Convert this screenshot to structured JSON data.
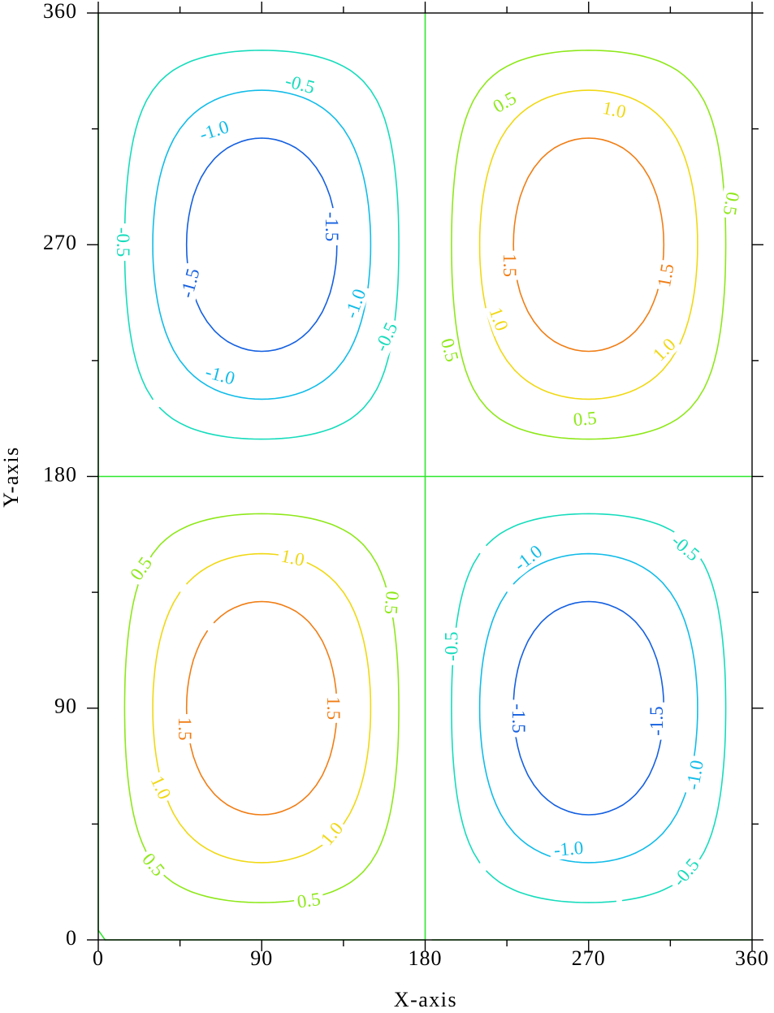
{
  "chart_data": {
    "type": "contour",
    "function": "z = 2*sin(x)*sin(y), x and y in degrees",
    "xlabel": "X-axis",
    "ylabel": "Y-axis",
    "xlim": [
      0,
      360
    ],
    "ylim": [
      0,
      360
    ],
    "x_ticks": [
      0,
      90,
      180,
      270,
      360
    ],
    "y_ticks": [
      0,
      90,
      180,
      270,
      360
    ],
    "x_tick_labels": [
      "0",
      "90",
      "180",
      "270",
      "360"
    ],
    "y_tick_labels": [
      "0",
      "90",
      "180",
      "270",
      "360"
    ],
    "x_minor_ticks": [
      45,
      135,
      225,
      315
    ],
    "y_minor_ticks": [
      45,
      135,
      225,
      315
    ],
    "grid": false,
    "levels": [
      {
        "value": -1.5,
        "label": "-1.5",
        "color": "#1560e0"
      },
      {
        "value": -1.0,
        "label": "-1.0",
        "color": "#12bce8"
      },
      {
        "value": -0.5,
        "label": "-0.5",
        "color": "#16dcbc"
      },
      {
        "value": 0.0,
        "label": "",
        "color": "#2ee82e"
      },
      {
        "value": 0.5,
        "label": "0.5",
        "color": "#8ee81a"
      },
      {
        "value": 1.0,
        "label": "1.0",
        "color": "#f0d814"
      },
      {
        "value": 1.5,
        "label": "1.5",
        "color": "#f07e16"
      }
    ],
    "lobes": [
      {
        "center": [
          90,
          270
        ],
        "sign": -1
      },
      {
        "center": [
          270,
          270
        ],
        "sign": 1
      },
      {
        "center": [
          90,
          90
        ],
        "sign": 1
      },
      {
        "center": [
          270,
          90
        ],
        "sign": -1
      }
    ],
    "contour_labels": [
      {
        "text": "-0.5",
        "x": 111,
        "y": 332,
        "angle": 15
      },
      {
        "text": "-1.0",
        "x": 64,
        "y": 314,
        "angle": -18
      },
      {
        "text": "-0.5",
        "x": 13,
        "y": 271,
        "angle": 90
      },
      {
        "text": "-1.5",
        "x": 128,
        "y": 277,
        "angle": 90
      },
      {
        "text": "-1.5",
        "x": 51,
        "y": 255,
        "angle": -75
      },
      {
        "text": "-1.0",
        "x": 142,
        "y": 247,
        "angle": -70
      },
      {
        "text": "-0.5",
        "x": 159,
        "y": 234,
        "angle": -65
      },
      {
        "text": "-1.0",
        "x": 67,
        "y": 219,
        "angle": 15
      },
      {
        "text": "0.5",
        "x": 224,
        "y": 325,
        "angle": -30
      },
      {
        "text": "1.0",
        "x": 284,
        "y": 322,
        "angle": 12
      },
      {
        "text": "0.5",
        "x": 348,
        "y": 286,
        "angle": 100
      },
      {
        "text": "1.5",
        "x": 226,
        "y": 262,
        "angle": 90
      },
      {
        "text": "1.5",
        "x": 313,
        "y": 258,
        "angle": -80
      },
      {
        "text": "1.0",
        "x": 220,
        "y": 241,
        "angle": 70
      },
      {
        "text": "1.0",
        "x": 312,
        "y": 229,
        "angle": -45
      },
      {
        "text": "0.5",
        "x": 193,
        "y": 229,
        "angle": 75
      },
      {
        "text": "0.5",
        "x": 268,
        "y": 202,
        "angle": -5
      },
      {
        "text": "0.5",
        "x": 24,
        "y": 144,
        "angle": -55
      },
      {
        "text": "1.0",
        "x": 107,
        "y": 148,
        "angle": 12
      },
      {
        "text": "0.5",
        "x": 161,
        "y": 131,
        "angle": 95
      },
      {
        "text": "1.5",
        "x": 129,
        "y": 90,
        "angle": 90
      },
      {
        "text": "1.5",
        "x": 47,
        "y": 82,
        "angle": 90
      },
      {
        "text": "1.0",
        "x": 34,
        "y": 59,
        "angle": 65
      },
      {
        "text": "1.0",
        "x": 129,
        "y": 41,
        "angle": -50
      },
      {
        "text": "0.5",
        "x": 30,
        "y": 29,
        "angle": 50
      },
      {
        "text": "0.5",
        "x": 116,
        "y": 15,
        "angle": -8
      },
      {
        "text": "-0.5",
        "x": 323,
        "y": 152,
        "angle": 40
      },
      {
        "text": "-1.0",
        "x": 237,
        "y": 148,
        "angle": -38
      },
      {
        "text": "-0.5",
        "x": 195,
        "y": 114,
        "angle": -90
      },
      {
        "text": "-1.5",
        "x": 231,
        "y": 86,
        "angle": 90
      },
      {
        "text": "-1.5",
        "x": 308,
        "y": 85,
        "angle": -90
      },
      {
        "text": "-1.0",
        "x": 329,
        "y": 64,
        "angle": -80
      },
      {
        "text": "-1.0",
        "x": 259,
        "y": 35,
        "angle": -5
      },
      {
        "text": "-0.5",
        "x": 324,
        "y": 26,
        "angle": -50
      }
    ]
  }
}
